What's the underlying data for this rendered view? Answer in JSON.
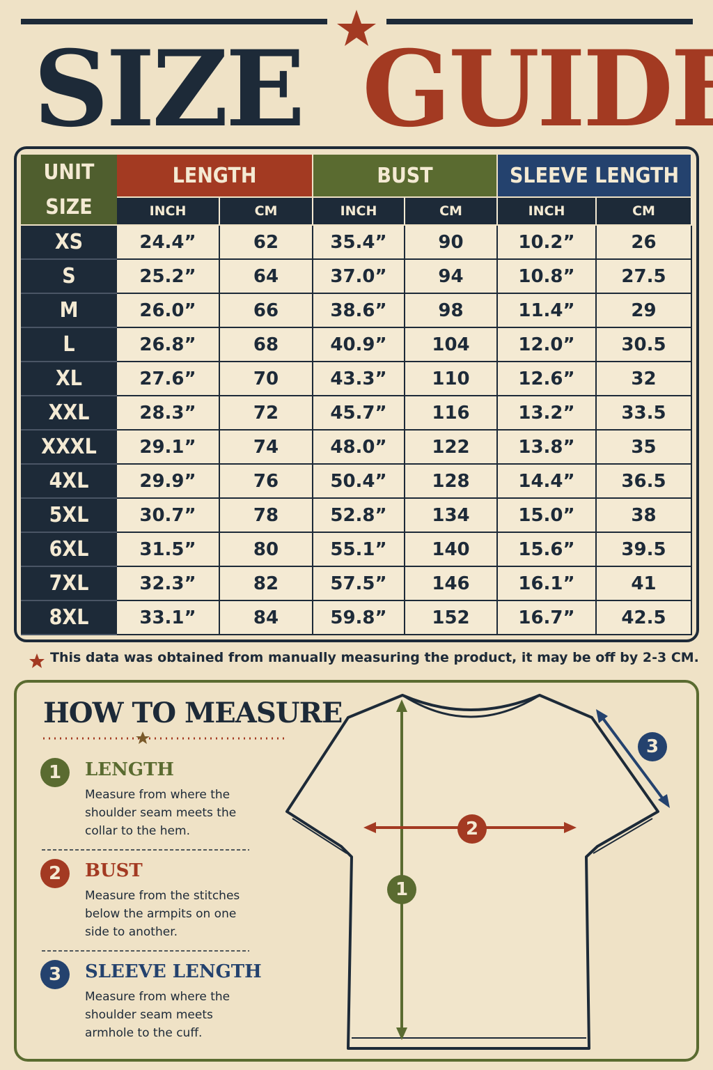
{
  "header": {
    "title_left": "SIZE",
    "title_right": "GUIDE"
  },
  "table": {
    "corner": [
      "UNIT",
      "SIZE"
    ],
    "groups": [
      "LENGTH",
      "BUST",
      "SLEEVE LENGTH"
    ],
    "units": [
      "INCH",
      "CM",
      "INCH",
      "CM",
      "INCH",
      "CM"
    ],
    "rows": [
      [
        "XS",
        "24.4”",
        "62",
        "35.4”",
        "90",
        "10.2”",
        "26"
      ],
      [
        "S",
        "25.2”",
        "64",
        "37.0”",
        "94",
        "10.8”",
        "27.5"
      ],
      [
        "M",
        "26.0”",
        "66",
        "38.6”",
        "98",
        "11.4”",
        "29"
      ],
      [
        "L",
        "26.8”",
        "68",
        "40.9”",
        "104",
        "12.0”",
        "30.5"
      ],
      [
        "XL",
        "27.6”",
        "70",
        "43.3”",
        "110",
        "12.6”",
        "32"
      ],
      [
        "XXL",
        "28.3”",
        "72",
        "45.7”",
        "116",
        "13.2”",
        "33.5"
      ],
      [
        "XXXL",
        "29.1”",
        "74",
        "48.0”",
        "122",
        "13.8”",
        "35"
      ],
      [
        "4XL",
        "29.9”",
        "76",
        "50.4”",
        "128",
        "14.4”",
        "36.5"
      ],
      [
        "5XL",
        "30.7”",
        "78",
        "52.8”",
        "134",
        "15.0”",
        "38"
      ],
      [
        "6XL",
        "31.5”",
        "80",
        "55.1”",
        "140",
        "15.6”",
        "39.5"
      ],
      [
        "7XL",
        "32.3”",
        "82",
        "57.5”",
        "146",
        "16.1”",
        "41"
      ],
      [
        "8XL",
        "33.1”",
        "84",
        "59.8”",
        "152",
        "16.7”",
        "42.5"
      ]
    ]
  },
  "note": "This data was obtained from manually measuring the product, it may be off by 2-3 CM.",
  "measure": {
    "title": "HOW TO MEASURE",
    "steps": [
      {
        "number": "1",
        "title": "LENGTH",
        "text": "Measure from where the shoulder seam meets the collar to the hem."
      },
      {
        "number": "2",
        "title": "BUST",
        "text": "Measure from the stitches below the armpits on one side to another."
      },
      {
        "number": "3",
        "title": "SLEEVE LENGTH",
        "text": "Measure from where the shoulder seam meets armhole to the cuff."
      }
    ]
  }
}
